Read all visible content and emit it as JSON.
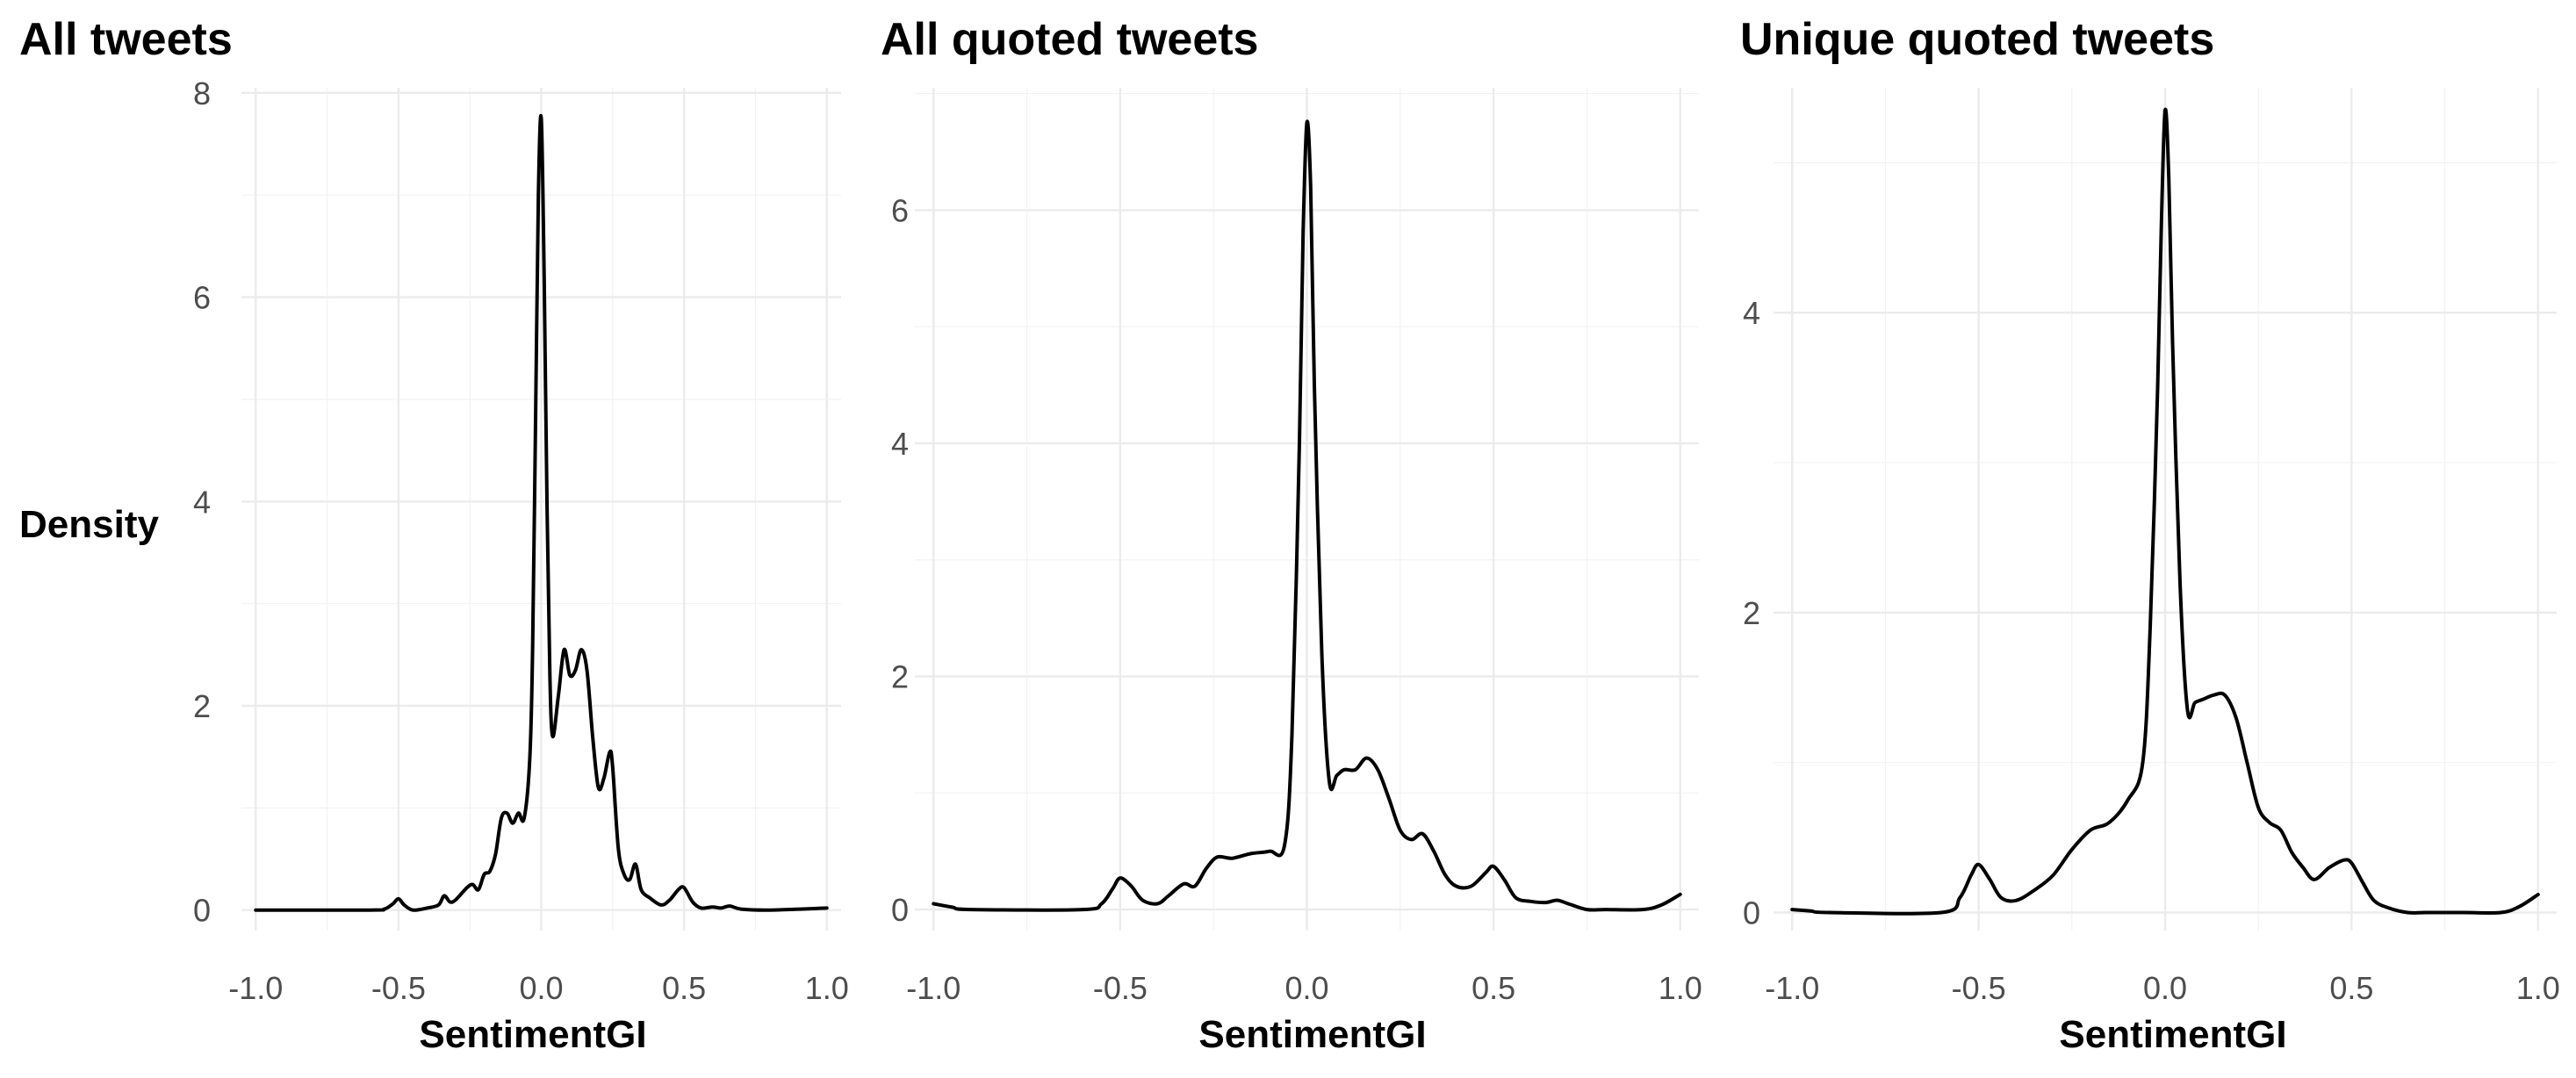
{
  "chart_data": [
    {
      "type": "line",
      "title": "All tweets",
      "xlabel": "SentimentGI",
      "ylabel": "Density",
      "xlim": [
        -1.05,
        1.05
      ],
      "ylim": [
        -0.2,
        8.05
      ],
      "x_ticks": [
        -1.0,
        -0.5,
        0.0,
        0.5,
        1.0
      ],
      "x_tick_labels": [
        "-1.0",
        "-0.5",
        "0.0",
        "0.5",
        "1.0"
      ],
      "y_ticks": [
        0,
        2,
        4,
        6,
        8
      ],
      "y_tick_labels": [
        "0",
        "2",
        "4",
        "6",
        "8"
      ],
      "grid": true,
      "series": [
        {
          "x": [
            -1.0,
            -0.6,
            -0.55,
            -0.52,
            -0.5,
            -0.48,
            -0.45,
            -0.4,
            -0.36,
            -0.34,
            -0.32,
            -0.3,
            -0.26,
            -0.24,
            -0.22,
            -0.2,
            -0.18,
            -0.16,
            -0.14,
            -0.12,
            -0.1,
            -0.08,
            -0.06,
            -0.04,
            -0.03,
            -0.02,
            -0.01,
            0.0,
            0.01,
            0.02,
            0.03,
            0.04,
            0.06,
            0.08,
            0.1,
            0.12,
            0.14,
            0.16,
            0.18,
            0.2,
            0.22,
            0.24,
            0.25,
            0.27,
            0.29,
            0.31,
            0.33,
            0.35,
            0.38,
            0.42,
            0.45,
            0.48,
            0.5,
            0.53,
            0.56,
            0.6,
            0.63,
            0.66,
            0.7,
            0.8,
            1.0
          ],
          "y": [
            0.0,
            0.0,
            0.01,
            0.06,
            0.11,
            0.05,
            0.0,
            0.02,
            0.05,
            0.14,
            0.08,
            0.1,
            0.22,
            0.25,
            0.2,
            0.35,
            0.38,
            0.55,
            0.9,
            0.95,
            0.85,
            0.95,
            0.9,
            1.5,
            2.6,
            4.8,
            7.0,
            7.75,
            6.2,
            4.0,
            2.3,
            1.7,
            2.1,
            2.55,
            2.3,
            2.35,
            2.55,
            2.35,
            1.7,
            1.2,
            1.3,
            1.55,
            1.4,
            0.6,
            0.35,
            0.3,
            0.45,
            0.2,
            0.12,
            0.05,
            0.1,
            0.2,
            0.22,
            0.08,
            0.02,
            0.03,
            0.02,
            0.04,
            0.01,
            0.0,
            0.02
          ]
        }
      ]
    },
    {
      "type": "line",
      "title": "All quoted tweets",
      "xlabel": "SentimentGI",
      "ylabel": "",
      "xlim": [
        -1.05,
        1.05
      ],
      "ylim": [
        -0.18,
        7.05
      ],
      "x_ticks": [
        -1.0,
        -0.5,
        0.0,
        0.5,
        1.0
      ],
      "x_tick_labels": [
        "-1.0",
        "-0.5",
        "0.0",
        "0.5",
        "1.0"
      ],
      "y_ticks": [
        0,
        2,
        4,
        6
      ],
      "y_tick_labels": [
        "0",
        "2",
        "4",
        "6"
      ],
      "grid": true,
      "series": [
        {
          "x": [
            -1.0,
            -0.95,
            -0.9,
            -0.6,
            -0.55,
            -0.52,
            -0.5,
            -0.47,
            -0.44,
            -0.4,
            -0.37,
            -0.33,
            -0.3,
            -0.27,
            -0.24,
            -0.2,
            -0.15,
            -0.1,
            -0.06,
            -0.04,
            -0.02,
            -0.01,
            0.0,
            0.01,
            0.02,
            0.04,
            0.06,
            0.08,
            0.1,
            0.13,
            0.16,
            0.19,
            0.22,
            0.25,
            0.28,
            0.31,
            0.34,
            0.37,
            0.4,
            0.44,
            0.48,
            0.5,
            0.53,
            0.56,
            0.6,
            0.64,
            0.67,
            0.7,
            0.75,
            0.8,
            0.9,
            0.95,
            1.0
          ],
          "y": [
            0.05,
            0.02,
            0.0,
            0.0,
            0.05,
            0.18,
            0.27,
            0.2,
            0.08,
            0.05,
            0.12,
            0.22,
            0.2,
            0.35,
            0.45,
            0.44,
            0.48,
            0.5,
            0.55,
            1.5,
            4.0,
            5.8,
            6.75,
            6.2,
            4.5,
            2.2,
            1.1,
            1.15,
            1.2,
            1.2,
            1.3,
            1.2,
            0.95,
            0.68,
            0.6,
            0.65,
            0.5,
            0.3,
            0.2,
            0.2,
            0.32,
            0.37,
            0.25,
            0.1,
            0.07,
            0.06,
            0.08,
            0.05,
            0.0,
            0.0,
            0.0,
            0.04,
            0.13
          ]
        }
      ]
    },
    {
      "type": "line",
      "title": "Unique quoted tweets",
      "xlabel": "SentimentGI",
      "ylabel": "",
      "xlim": [
        -1.05,
        1.05
      ],
      "ylim": [
        -0.12,
        5.5
      ],
      "x_ticks": [
        -1.0,
        -0.5,
        0.0,
        0.5,
        1.0
      ],
      "x_tick_labels": [
        "-1.0",
        "-0.5",
        "0.0",
        "0.5",
        "1.0"
      ],
      "y_ticks": [
        0,
        2,
        4
      ],
      "y_tick_labels": [
        "0",
        "2",
        "4"
      ],
      "grid": true,
      "series": [
        {
          "x": [
            -1.0,
            -0.95,
            -0.9,
            -0.6,
            -0.55,
            -0.52,
            -0.5,
            -0.47,
            -0.44,
            -0.4,
            -0.35,
            -0.3,
            -0.25,
            -0.2,
            -0.15,
            -0.1,
            -0.06,
            -0.04,
            -0.02,
            -0.01,
            0.0,
            0.01,
            0.02,
            0.04,
            0.06,
            0.08,
            0.1,
            0.13,
            0.16,
            0.19,
            0.22,
            0.25,
            0.28,
            0.31,
            0.34,
            0.37,
            0.4,
            0.44,
            0.48,
            0.5,
            0.53,
            0.56,
            0.6,
            0.65,
            0.7,
            0.8,
            0.9,
            0.95,
            1.0
          ],
          "y": [
            0.02,
            0.01,
            0.0,
            0.0,
            0.1,
            0.25,
            0.32,
            0.22,
            0.1,
            0.08,
            0.15,
            0.25,
            0.42,
            0.55,
            0.6,
            0.75,
            1.0,
            1.9,
            3.5,
            4.6,
            5.35,
            4.9,
            3.8,
            2.2,
            1.35,
            1.4,
            1.42,
            1.45,
            1.45,
            1.3,
            1.0,
            0.7,
            0.6,
            0.55,
            0.4,
            0.3,
            0.22,
            0.3,
            0.35,
            0.33,
            0.2,
            0.08,
            0.03,
            0.0,
            0.0,
            0.0,
            0.0,
            0.04,
            0.12
          ]
        }
      ]
    }
  ]
}
